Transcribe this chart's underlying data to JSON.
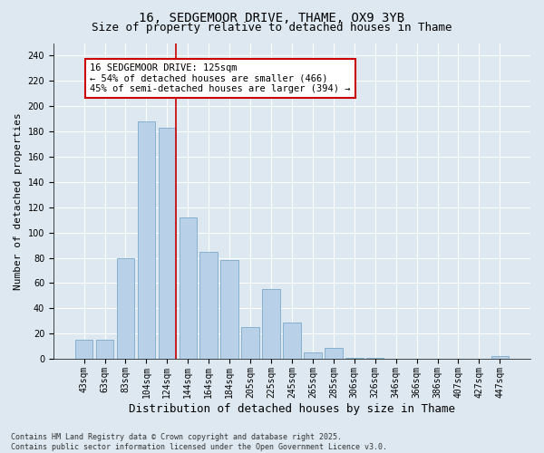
{
  "title1": "16, SEDGEMOOR DRIVE, THAME, OX9 3YB",
  "title2": "Size of property relative to detached houses in Thame",
  "xlabel": "Distribution of detached houses by size in Thame",
  "ylabel": "Number of detached properties",
  "categories": [
    "43sqm",
    "63sqm",
    "83sqm",
    "104sqm",
    "124sqm",
    "144sqm",
    "164sqm",
    "184sqm",
    "205sqm",
    "225sqm",
    "245sqm",
    "265sqm",
    "285sqm",
    "306sqm",
    "326sqm",
    "346sqm",
    "366sqm",
    "386sqm",
    "407sqm",
    "427sqm",
    "447sqm"
  ],
  "values": [
    15,
    15,
    80,
    188,
    183,
    112,
    85,
    78,
    25,
    55,
    29,
    5,
    9,
    1,
    1,
    0,
    0,
    0,
    0,
    0,
    2
  ],
  "bar_color": "#b8d0e8",
  "bar_edge_color": "#6a9fc0",
  "vline_x_index": 4,
  "vline_color": "#cc0000",
  "annotation_text": "16 SEDGEMOOR DRIVE: 125sqm\n← 54% of detached houses are smaller (466)\n45% of semi-detached houses are larger (394) →",
  "annotation_box_color": "#ffffff",
  "annotation_box_edge": "#cc0000",
  "ylim": [
    0,
    250
  ],
  "yticks": [
    0,
    20,
    40,
    60,
    80,
    100,
    120,
    140,
    160,
    180,
    200,
    220,
    240
  ],
  "bg_color": "#dde8f0",
  "footer": "Contains HM Land Registry data © Crown copyright and database right 2025.\nContains public sector information licensed under the Open Government Licence v3.0.",
  "title1_fontsize": 10,
  "title2_fontsize": 9,
  "xlabel_fontsize": 9,
  "ylabel_fontsize": 8,
  "annotation_fontsize": 7.5,
  "tick_fontsize": 7,
  "footer_fontsize": 6
}
